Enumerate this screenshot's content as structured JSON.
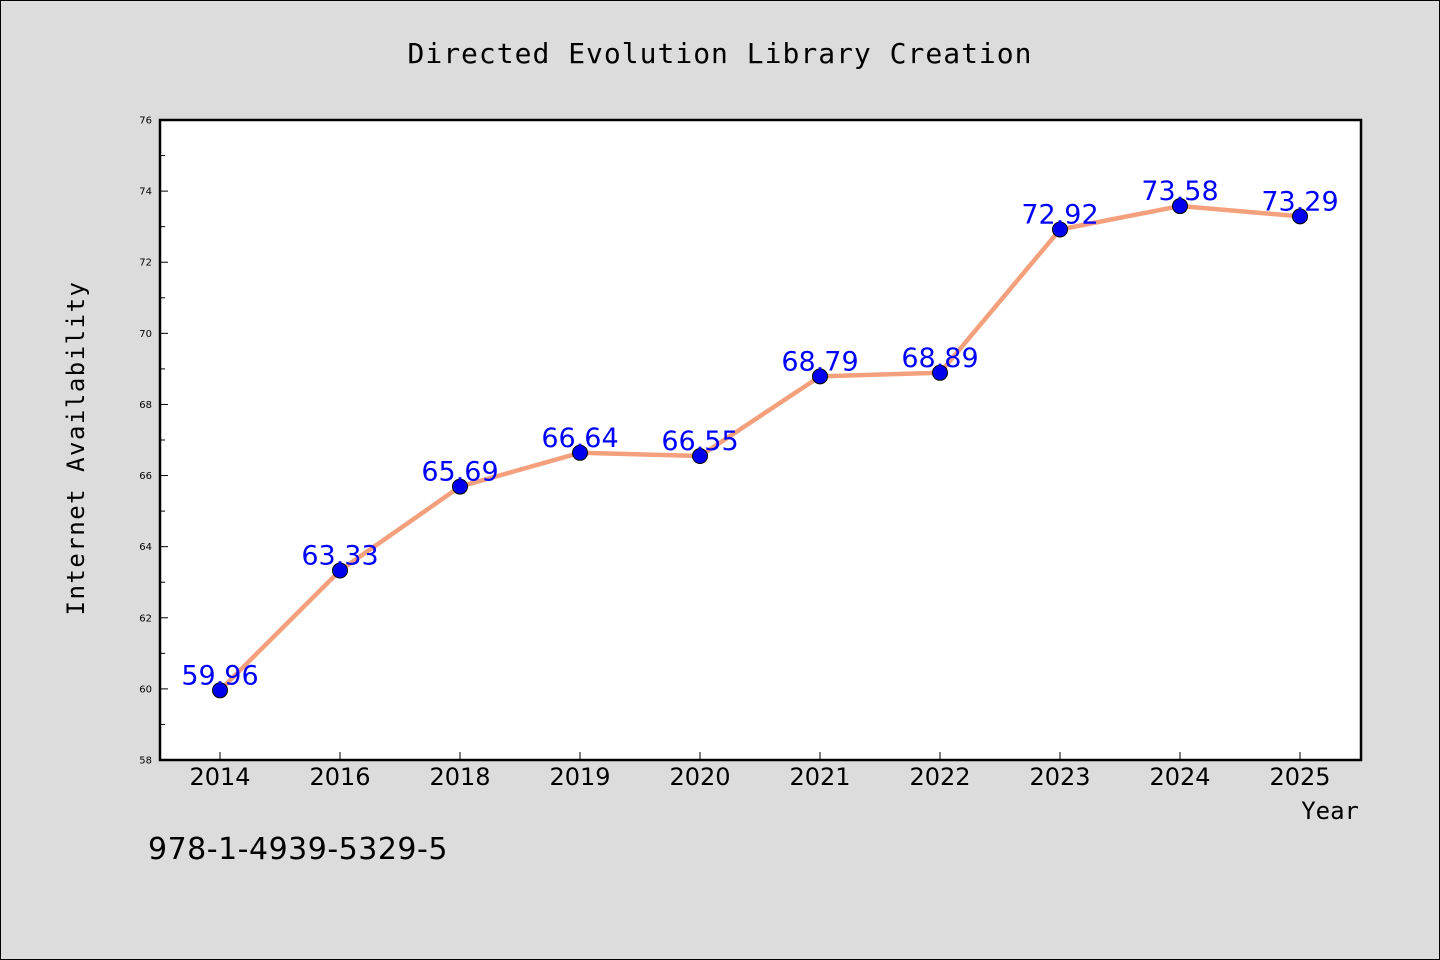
{
  "caption": "978-1-4939-5329-5",
  "chart_data": {
    "type": "line",
    "title": "Directed Evolution Library Creation",
    "xlabel": "Year",
    "ylabel": "Internet Availability",
    "categories": [
      "2014",
      "2016",
      "2018",
      "2019",
      "2020",
      "2021",
      "2022",
      "2023",
      "2024",
      "2025"
    ],
    "values": [
      59.96,
      63.33,
      65.69,
      66.64,
      66.55,
      68.79,
      68.89,
      72.92,
      73.58,
      73.29
    ],
    "data_labels": [
      "59.96",
      "63.33",
      "65.69",
      "66.64",
      "66.55",
      "68.79",
      "68.89",
      "72.92",
      "73.58",
      "73.29"
    ],
    "ylim": [
      58,
      76
    ],
    "yticks": [
      58,
      60,
      62,
      64,
      66,
      68,
      70,
      72,
      74,
      76
    ],
    "grid": false,
    "legend": "none",
    "colors": {
      "line": "#f4a07c",
      "marker": "#0000ee",
      "data_label": "#0000ff",
      "plot_background": "#ffffff",
      "page_background": "#dcdcdc"
    }
  }
}
